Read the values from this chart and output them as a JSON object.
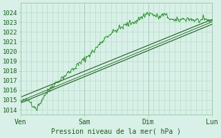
{
  "bg_color": "#d8f0e8",
  "grid_color": "#b0d8c0",
  "line_color_dark": "#1a5c1a",
  "line_color_light": "#2d8c2d",
  "xlabel": "Pression niveau de la mer( hPa )",
  "xtick_labels": [
    "Ven",
    "Sam",
    "Dim",
    "Lun"
  ],
  "ytick_min": 1014,
  "ytick_max": 1024,
  "ylim": [
    1013.5,
    1025.0
  ],
  "xlim": [
    0,
    72
  ],
  "xtick_positions": [
    0,
    24,
    48,
    72
  ],
  "day_lines": [
    0,
    24,
    48,
    72
  ],
  "title": ""
}
